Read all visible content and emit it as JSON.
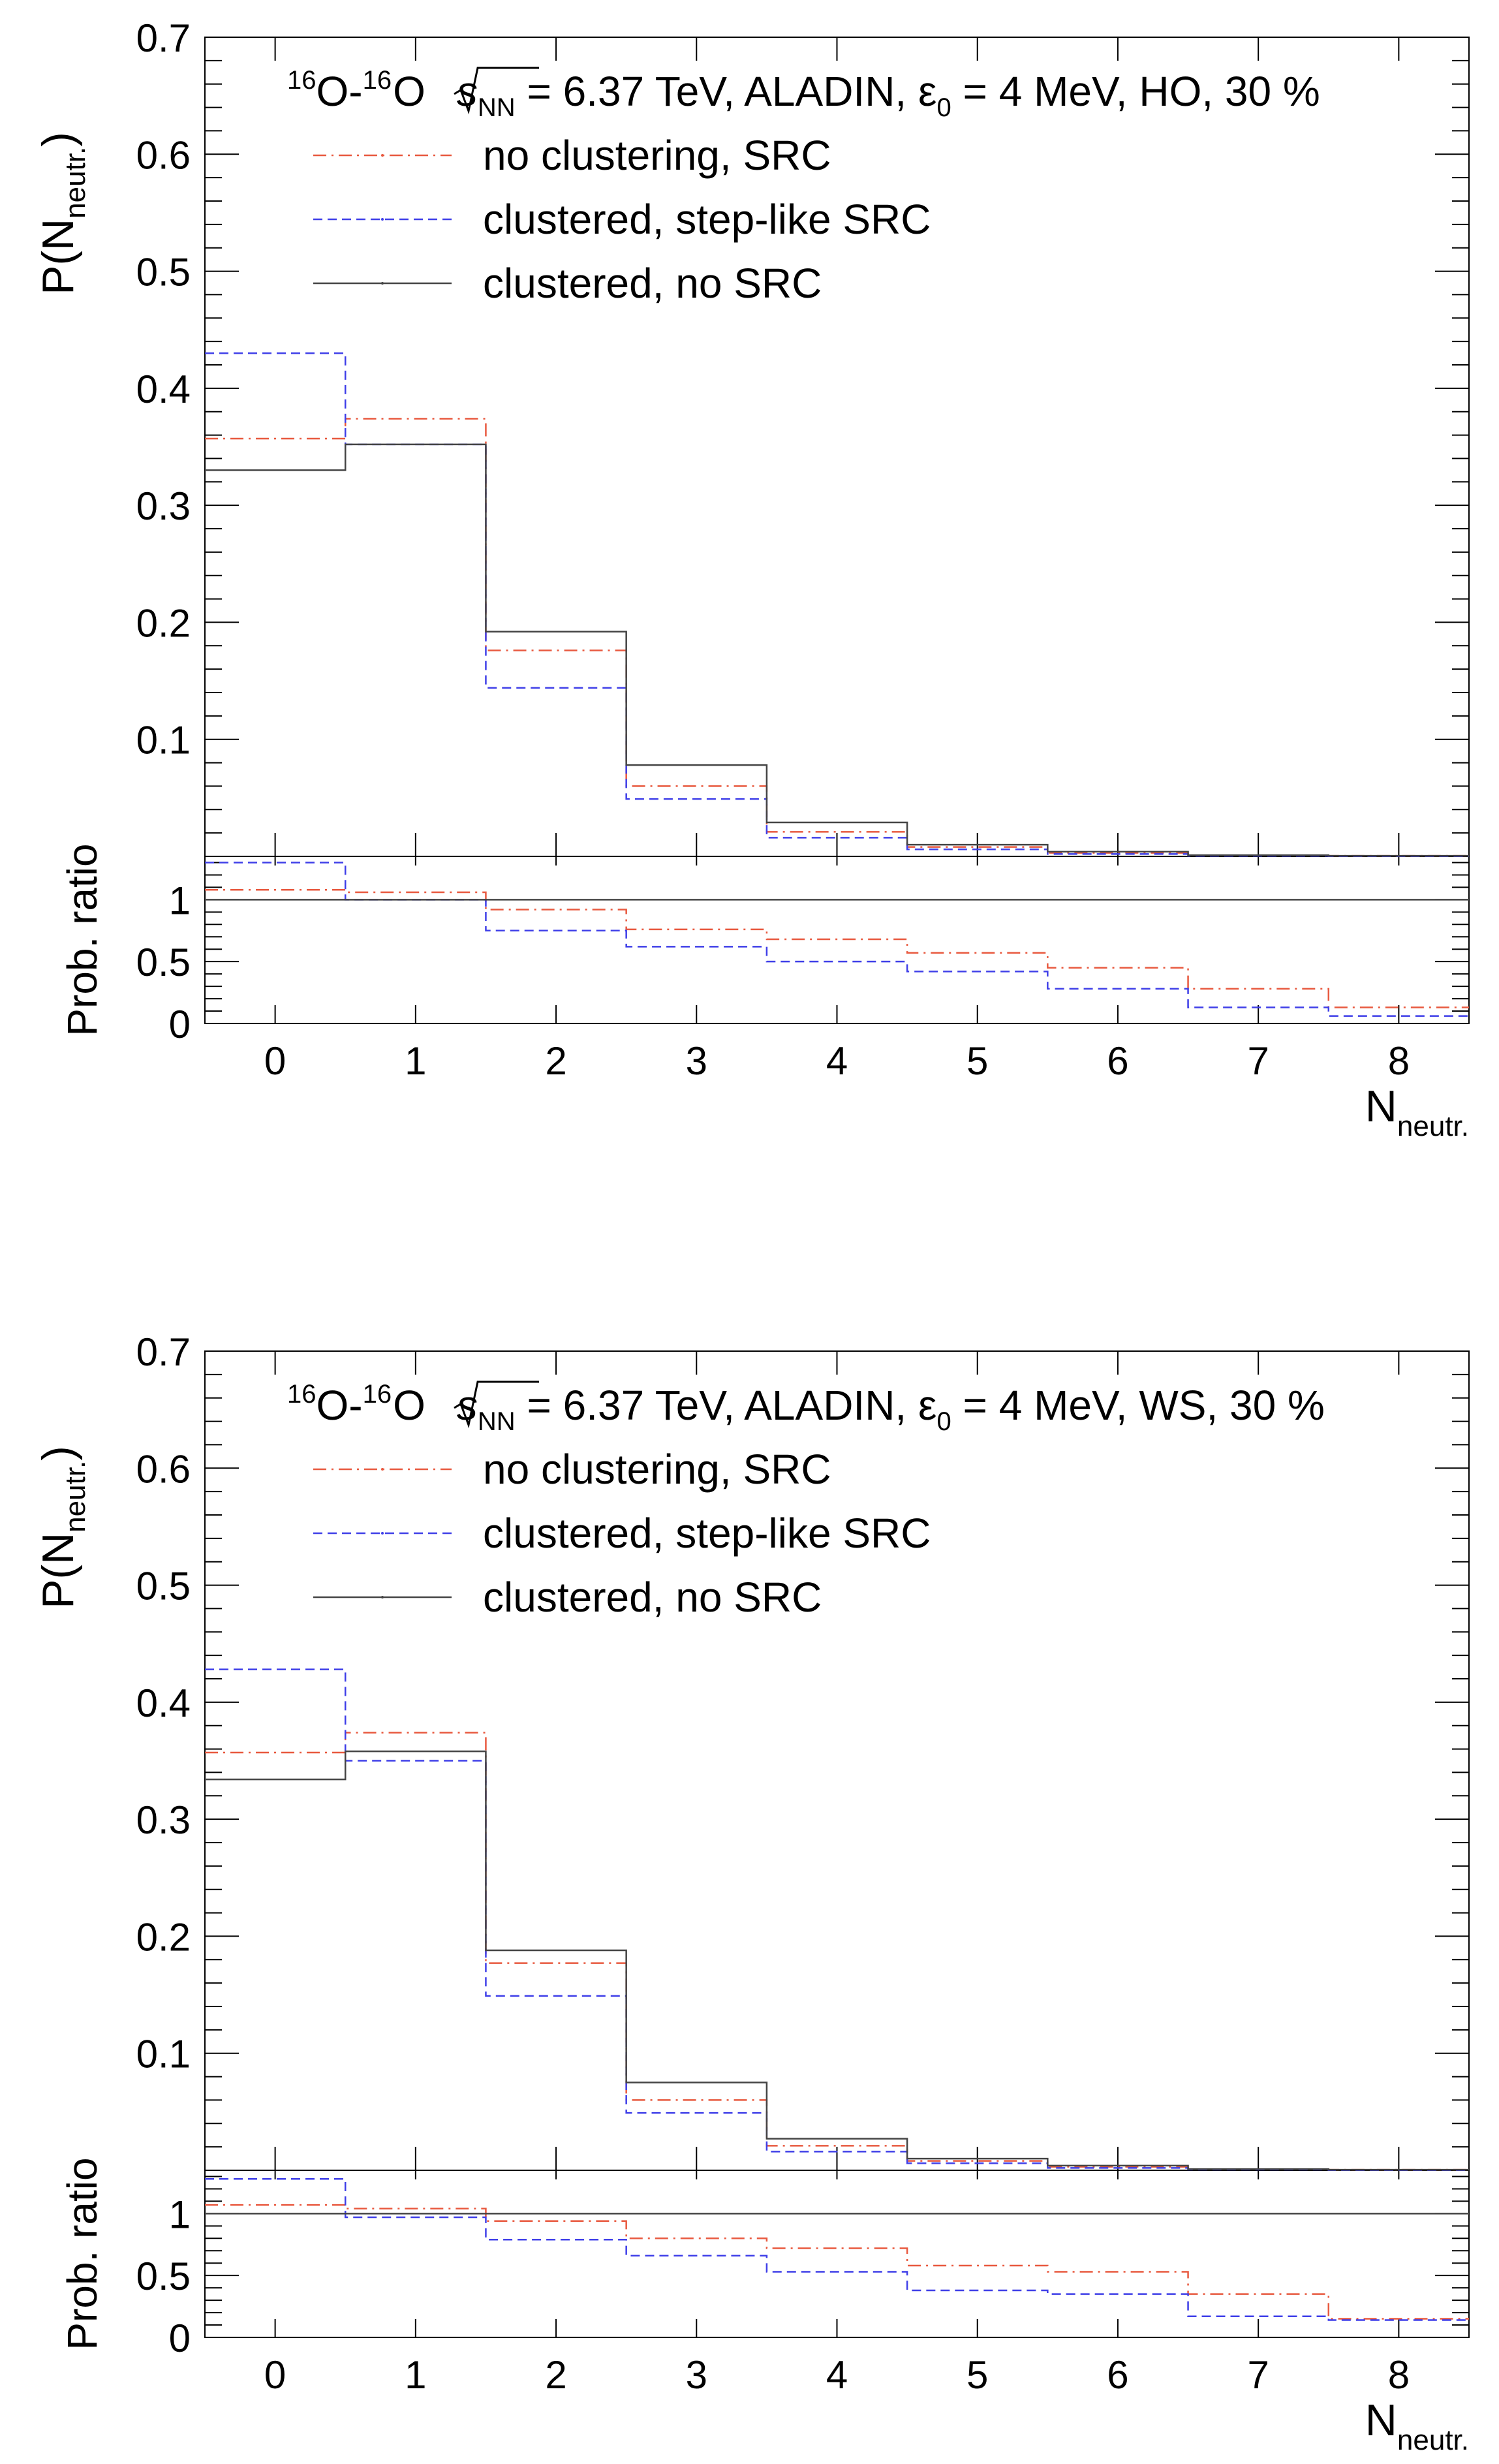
{
  "chart_data": [
    {
      "type": "histogram-step",
      "title_parts": {
        "a_sup": "16",
        "a": "O-",
        "b_sup": "16",
        "b": "O",
        "sqrt_var": "s",
        "sqrt_sub": "NN",
        "rest1": " = 6.37 TeV, ALADIN, ",
        "eps": "ε",
        "eps_sub": "0",
        "rest2": " = 4 MeV, HO, 30 %"
      },
      "ylabel": {
        "main": "P(N",
        "sub": "neutr.",
        "close": ")"
      },
      "ratio_ylabel": "Prob. ratio",
      "xlabel": {
        "main": "N",
        "sub": "neutr."
      },
      "xlim": [
        -0.5,
        8.5
      ],
      "ylim": [
        0,
        0.7
      ],
      "ratio_ylim": [
        0,
        1.35
      ],
      "x_ticks": [
        "0",
        "1",
        "2",
        "3",
        "4",
        "5",
        "6",
        "7",
        "8"
      ],
      "y_ticks": [
        "0.1",
        "0.2",
        "0.3",
        "0.4",
        "0.5",
        "0.6",
        "0.7"
      ],
      "ratio_y_ticks": [
        "0",
        "0.5",
        "1"
      ],
      "series": [
        {
          "name": "no clustering, SRC",
          "color": "#e8593f",
          "dash": "dashdot",
          "values": [
            0.357,
            0.374,
            0.176,
            0.06,
            0.021,
            0.008,
            0.003,
            0.001,
            0.0005
          ],
          "ratio": [
            1.08,
            1.06,
            0.92,
            0.76,
            0.68,
            0.57,
            0.45,
            0.28,
            0.13
          ]
        },
        {
          "name": "clustered, step-like SRC",
          "color": "#3f3fe8",
          "dash": "dashed",
          "values": [
            0.43,
            0.352,
            0.144,
            0.049,
            0.016,
            0.006,
            0.002,
            0.0005,
            0.0002
          ],
          "ratio": [
            1.3,
            1.0,
            0.75,
            0.62,
            0.5,
            0.42,
            0.28,
            0.13,
            0.06
          ]
        },
        {
          "name": "clustered, no SRC",
          "color": "#444444",
          "dash": "solid",
          "values": [
            0.33,
            0.352,
            0.192,
            0.078,
            0.029,
            0.01,
            0.004,
            0.001,
            0.0005
          ],
          "ratio": [
            1,
            1,
            1,
            1,
            1,
            1,
            1,
            1,
            1
          ]
        }
      ]
    },
    {
      "type": "histogram-step",
      "title_parts": {
        "a_sup": "16",
        "a": "O-",
        "b_sup": "16",
        "b": "O",
        "sqrt_var": "s",
        "sqrt_sub": "NN",
        "rest1": " = 6.37 TeV, ALADIN, ",
        "eps": "ε",
        "eps_sub": "0",
        "rest2": " = 4 MeV, WS, 30 %"
      },
      "ylabel": {
        "main": "P(N",
        "sub": "neutr.",
        "close": ")"
      },
      "ratio_ylabel": "Prob. ratio",
      "xlabel": {
        "main": "N",
        "sub": "neutr."
      },
      "xlim": [
        -0.5,
        8.5
      ],
      "ylim": [
        0,
        0.7
      ],
      "ratio_ylim": [
        0,
        1.35
      ],
      "x_ticks": [
        "0",
        "1",
        "2",
        "3",
        "4",
        "5",
        "6",
        "7",
        "8"
      ],
      "y_ticks": [
        "0.1",
        "0.2",
        "0.3",
        "0.4",
        "0.5",
        "0.6",
        "0.7"
      ],
      "ratio_y_ticks": [
        "0",
        "0.5",
        "1"
      ],
      "series": [
        {
          "name": "no clustering, SRC",
          "color": "#e8593f",
          "dash": "dashdot",
          "values": [
            0.357,
            0.374,
            0.177,
            0.06,
            0.021,
            0.008,
            0.003,
            0.001,
            0.0005
          ],
          "ratio": [
            1.07,
            1.04,
            0.94,
            0.8,
            0.72,
            0.58,
            0.53,
            0.35,
            0.15
          ]
        },
        {
          "name": "clustered, step-like SRC",
          "color": "#3f3fe8",
          "dash": "dashed",
          "values": [
            0.428,
            0.35,
            0.149,
            0.049,
            0.016,
            0.006,
            0.002,
            0.0006,
            0.0002
          ],
          "ratio": [
            1.28,
            0.97,
            0.79,
            0.66,
            0.53,
            0.38,
            0.35,
            0.17,
            0.14
          ]
        },
        {
          "name": "clustered, no SRC",
          "color": "#444444",
          "dash": "solid",
          "values": [
            0.334,
            0.358,
            0.188,
            0.075,
            0.027,
            0.01,
            0.004,
            0.001,
            0.0005
          ],
          "ratio": [
            1,
            1,
            1,
            1,
            1,
            1,
            1,
            1,
            1
          ]
        }
      ]
    }
  ]
}
